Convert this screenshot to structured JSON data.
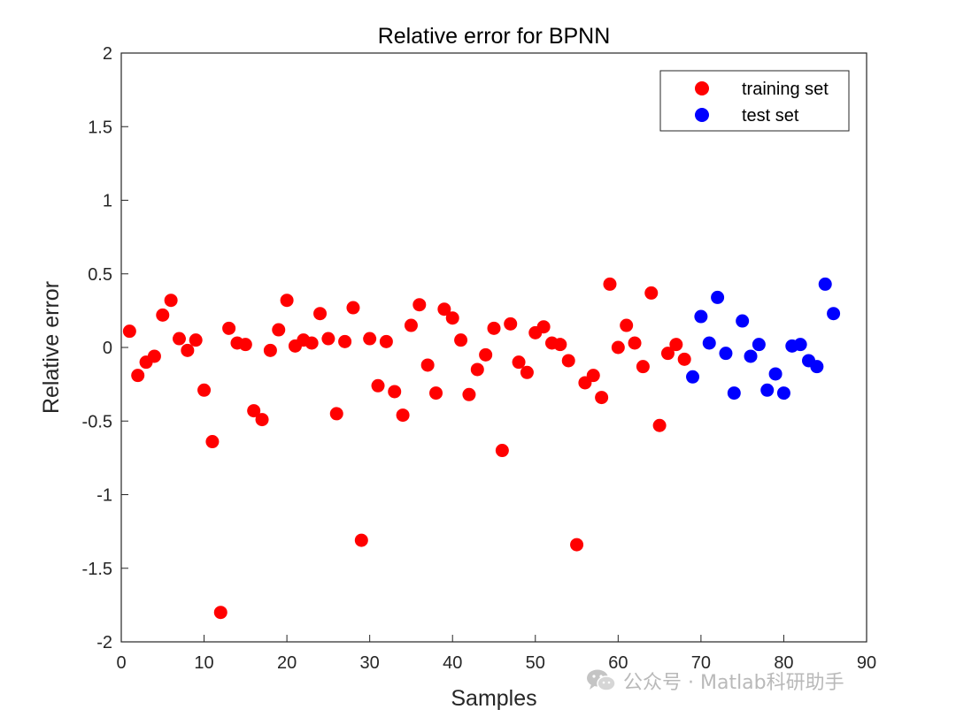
{
  "chart_data": {
    "type": "scatter",
    "title": "Relative error for BPNN",
    "xlabel": "Samples",
    "ylabel": "Relative error",
    "xlim": [
      0,
      90
    ],
    "ylim": [
      -2,
      2
    ],
    "xticks": [
      "0",
      "10",
      "20",
      "30",
      "40",
      "50",
      "60",
      "70",
      "80",
      "90"
    ],
    "yticks": [
      "2",
      "1.5",
      "1",
      "0.5",
      "0",
      "-0.5",
      "-1",
      "-1.5",
      "-2"
    ],
    "legend_position": "top-right",
    "grid": false,
    "series": [
      {
        "name": "training set",
        "color": "#ff0000",
        "x": [
          1,
          2,
          3,
          4,
          5,
          6,
          7,
          8,
          9,
          10,
          11,
          12,
          13,
          14,
          15,
          16,
          17,
          18,
          19,
          20,
          21,
          22,
          23,
          24,
          25,
          26,
          27,
          28,
          29,
          30,
          31,
          32,
          33,
          34,
          35,
          36,
          37,
          38,
          39,
          40,
          41,
          42,
          43,
          44,
          45,
          46,
          47,
          48,
          49,
          50,
          51,
          52,
          53,
          54,
          55,
          56,
          57,
          58,
          59,
          60,
          61,
          62,
          63,
          64,
          65,
          66,
          67,
          68
        ],
        "y": [
          0.11,
          -0.19,
          -0.1,
          -0.06,
          0.22,
          0.32,
          0.06,
          -0.02,
          0.05,
          -0.29,
          -0.64,
          -1.8,
          0.13,
          0.03,
          0.02,
          -0.43,
          -0.49,
          -0.02,
          0.12,
          0.32,
          0.01,
          0.05,
          0.03,
          0.23,
          0.06,
          -0.45,
          0.04,
          0.27,
          -1.31,
          0.06,
          -0.26,
          0.04,
          -0.3,
          -0.46,
          0.15,
          0.29,
          -0.12,
          -0.31,
          0.26,
          0.2,
          0.05,
          -0.32,
          -0.15,
          -0.05,
          0.13,
          -0.7,
          0.16,
          -0.1,
          -0.17,
          0.1,
          0.14,
          0.03,
          0.02,
          -0.09,
          -1.34,
          -0.24,
          -0.19,
          -0.34,
          0.43,
          0.0,
          0.15,
          0.03,
          -0.13,
          0.37,
          -0.53,
          -0.04,
          0.02,
          -0.08
        ]
      },
      {
        "name": "test set",
        "color": "#0000ff",
        "x": [
          69,
          70,
          71,
          72,
          73,
          74,
          75,
          76,
          77,
          78,
          79,
          80,
          81,
          82,
          83,
          84,
          85,
          86
        ],
        "y": [
          -0.2,
          0.21,
          0.03,
          0.34,
          -0.04,
          -0.31,
          0.18,
          -0.06,
          0.02,
          -0.29,
          -0.18,
          -0.31,
          0.01,
          0.02,
          -0.09,
          -0.13,
          0.43,
          0.23
        ]
      }
    ]
  },
  "watermark": {
    "text": "公众号 · Matlab科研助手",
    "icon": "wechat-icon"
  }
}
